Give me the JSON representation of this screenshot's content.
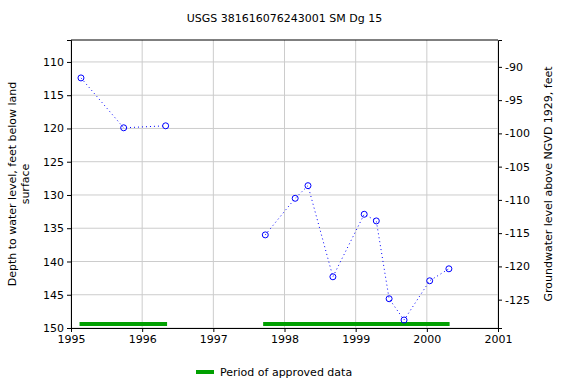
{
  "chart_data": {
    "type": "line",
    "title": "USGS 381616076243001 SM Dg  15",
    "y_label": "Depth to water level, feet below land surface",
    "y2_label": "Groundwater level above NGVD 1929, feet",
    "x": [
      1995.14,
      1995.74,
      1996.33,
      null,
      1997.73,
      1998.15,
      1998.33,
      1998.68,
      1999.12,
      1999.29,
      1999.47,
      1999.68,
      2000.04,
      2000.31
    ],
    "series": [
      {
        "color": "#0000ff",
        "marker": "circle-open",
        "line_style": "dotted",
        "values": [
          112.4,
          119.9,
          119.6,
          null,
          136.0,
          130.5,
          128.6,
          142.3,
          132.9,
          133.9,
          145.6,
          148.8,
          142.9,
          141.1
        ]
      }
    ],
    "approved_periods": {
      "name": "Period of approved data",
      "color": "#00a000",
      "ranges": [
        [
          1995.12,
          1996.35
        ],
        [
          1997.7,
          2000.32
        ]
      ]
    },
    "xlim": [
      1995,
      2001
    ],
    "xticks": [
      1995,
      1996,
      1997,
      1998,
      1999,
      2000,
      2001
    ],
    "ylim": [
      106.7,
      150
    ],
    "yticks": [
      110,
      115,
      120,
      125,
      130,
      135,
      140,
      145,
      150
    ],
    "y2lim": [
      -85.96,
      -129.26
    ],
    "y2ticks": [
      -90,
      -95,
      -100,
      -105,
      -110,
      -115,
      -120,
      -125
    ],
    "grid": true
  }
}
